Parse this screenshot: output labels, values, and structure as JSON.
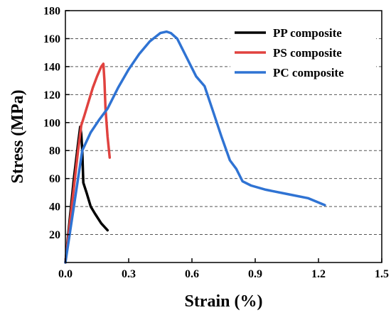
{
  "chart_data": {
    "type": "line",
    "xlabel": "Strain (%)",
    "ylabel": "Stress (MPa)",
    "xlim": [
      0,
      1.5
    ],
    "ylim": [
      0,
      180
    ],
    "x_ticks": [
      "0.0",
      "0.3",
      "0.6",
      "0.9",
      "1.2",
      "1.5"
    ],
    "y_ticks": [
      "20",
      "40",
      "60",
      "80",
      "100",
      "120",
      "140",
      "160",
      "180"
    ],
    "grid": "horizontal dashed",
    "legend_position": "top-right",
    "series": [
      {
        "name": "PP composite",
        "color": "#000000",
        "points": [
          [
            0,
            0
          ],
          [
            0.02,
            30
          ],
          [
            0.04,
            60
          ],
          [
            0.06,
            85
          ],
          [
            0.07,
            97
          ],
          [
            0.075,
            92
          ],
          [
            0.08,
            80
          ],
          [
            0.085,
            57
          ],
          [
            0.1,
            50
          ],
          [
            0.12,
            40
          ],
          [
            0.14,
            35
          ],
          [
            0.17,
            28
          ],
          [
            0.2,
            23
          ]
        ]
      },
      {
        "name": "PS composite",
        "color": "#e0423f",
        "points": [
          [
            0,
            0
          ],
          [
            0.03,
            40
          ],
          [
            0.06,
            80
          ],
          [
            0.075,
            98
          ],
          [
            0.09,
            105
          ],
          [
            0.11,
            115
          ],
          [
            0.13,
            125
          ],
          [
            0.15,
            133
          ],
          [
            0.17,
            140
          ],
          [
            0.18,
            142
          ],
          [
            0.185,
            130
          ],
          [
            0.19,
            110
          ],
          [
            0.2,
            90
          ],
          [
            0.21,
            75
          ]
        ]
      },
      {
        "name": "PC composite",
        "color": "#2f73d3",
        "points": [
          [
            0,
            0
          ],
          [
            0.04,
            40
          ],
          [
            0.08,
            80
          ],
          [
            0.12,
            93
          ],
          [
            0.16,
            102
          ],
          [
            0.2,
            110
          ],
          [
            0.25,
            125
          ],
          [
            0.3,
            138
          ],
          [
            0.35,
            149
          ],
          [
            0.4,
            158
          ],
          [
            0.45,
            164
          ],
          [
            0.48,
            165
          ],
          [
            0.5,
            164
          ],
          [
            0.53,
            160
          ],
          [
            0.57,
            148
          ],
          [
            0.62,
            133
          ],
          [
            0.66,
            126
          ],
          [
            0.7,
            108
          ],
          [
            0.74,
            90
          ],
          [
            0.78,
            73
          ],
          [
            0.81,
            67
          ],
          [
            0.84,
            58
          ],
          [
            0.88,
            55
          ],
          [
            0.95,
            52
          ],
          [
            1.05,
            49
          ],
          [
            1.15,
            46
          ],
          [
            1.23,
            41
          ]
        ]
      }
    ]
  }
}
